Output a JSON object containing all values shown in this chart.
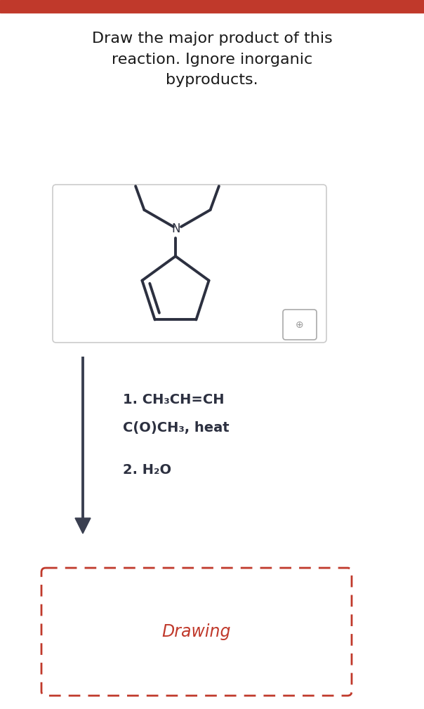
{
  "bg_color": "#ffffff",
  "header_color": "#c0392b",
  "title_text": "Draw the major product of this\nreaction. Ignore inorganic\nbyproducts.",
  "title_fontsize": 16,
  "title_color": "#1a1a1a",
  "mol_color": "#2c3040",
  "mol_box_linecolor": "#cccccc",
  "reagent_line1": "1. CH₃CH=CH",
  "reagent_line2": "C(O)CH₃, heat",
  "reagent_line3": "2. H₂O",
  "reagent_fontsize": 14,
  "reagent_color": "#2c3040",
  "drawing_text": "Drawing",
  "drawing_text_color": "#c0392b",
  "drawing_text_fontsize": 17,
  "drawing_box_color": "#c0392b",
  "arrow_color": "#3a3f50",
  "zoom_icon_color": "#888888"
}
